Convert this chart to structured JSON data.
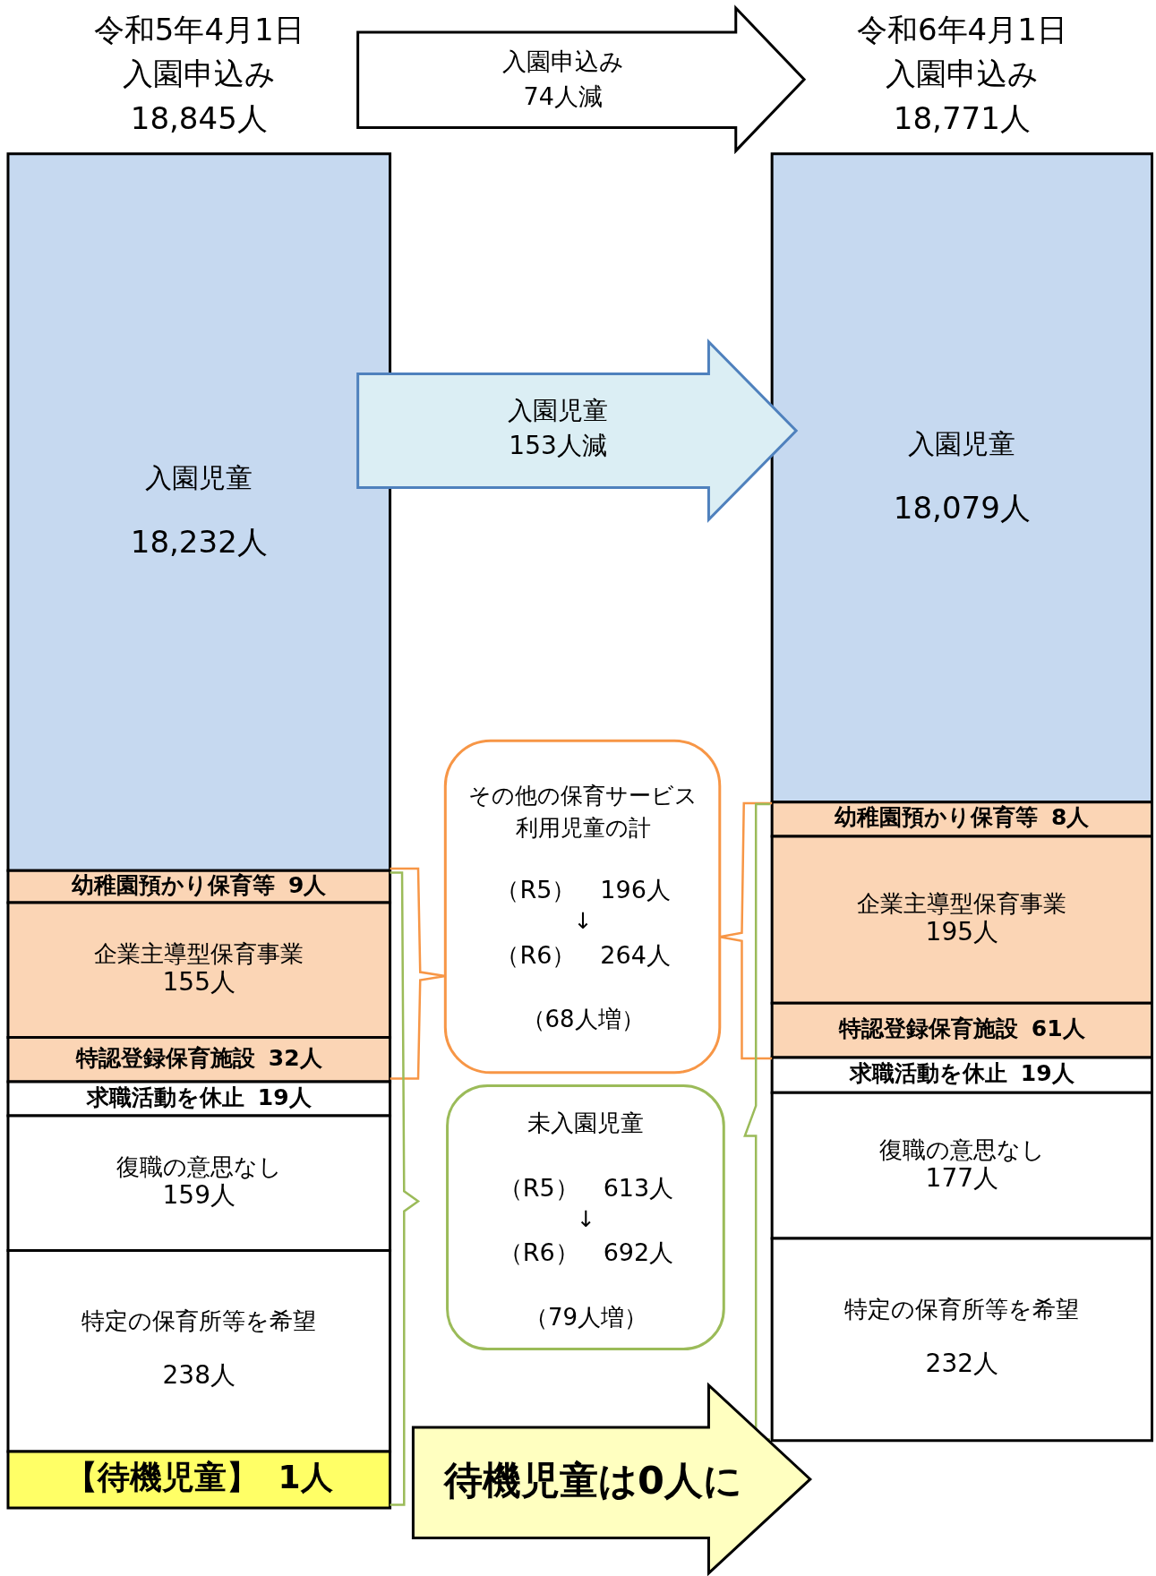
{
  "chart_data": {
    "type": "other",
    "categories": [
      "令和5年4月1日",
      "令和6年4月1日"
    ],
    "totals": [
      "入園申込み\n18,845人",
      "入園申込み\n18,771人"
    ],
    "series": [
      {
        "name": "入園児童",
        "color": "#c6d9f0",
        "values": [
          18232,
          18079
        ],
        "value_labels": [
          "18,232人",
          "18,079人"
        ]
      },
      {
        "name": "幼稚園預かり保育等",
        "color": "#fbd5b5",
        "values": [
          9,
          8
        ],
        "value_labels": [
          "9人",
          "8人"
        ]
      },
      {
        "name": "企業主導型保育事業",
        "color": "#fbd5b5",
        "values": [
          155,
          195
        ],
        "value_labels": [
          "155人",
          "195人"
        ]
      },
      {
        "name": "特認登録保育施設",
        "color": "#fbd5b5",
        "values": [
          32,
          61
        ],
        "value_labels": [
          "32人",
          "61人"
        ]
      },
      {
        "name": "求職活動を休止",
        "color": "#ffffff",
        "values": [
          19,
          19
        ],
        "value_labels": [
          "19人",
          "19人"
        ]
      },
      {
        "name": "復職の意思なし",
        "color": "#ffffff",
        "values": [
          159,
          177
        ],
        "value_labels": [
          "159人",
          "177人"
        ]
      },
      {
        "name": "特定の保育所等を希望",
        "color": "#ffffff",
        "values": [
          238,
          232
        ],
        "value_labels": [
          "238人",
          "232人"
        ]
      },
      {
        "name": "【待機児童】",
        "color": "#ffff66",
        "values": [
          1,
          null
        ],
        "value_labels": [
          "1人",
          null
        ]
      }
    ],
    "annotations": [
      "入園申込み\n74人減",
      "入園児童\n153人減",
      "その他の保育サービス利用児童の計",
      "（R5）　196人",
      "↓",
      "（R6）　264人",
      "（68人増）",
      "未入園児童",
      "（R5）　613人",
      "↓",
      "（R6）　692人",
      "（79人増）",
      "待機児童は0人に"
    ]
  }
}
